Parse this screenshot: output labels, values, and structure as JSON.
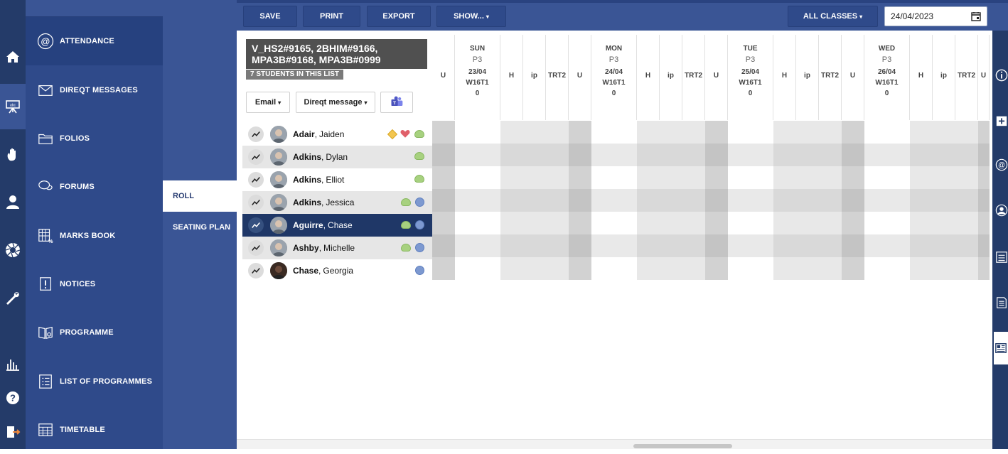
{
  "nav": {
    "items": [
      {
        "label": "ATTENDANCE",
        "icon": "at-sign-icon",
        "active": true
      },
      {
        "label": "DIREQT MESSAGES",
        "icon": "envelope-icon"
      },
      {
        "label": "FOLIOS",
        "icon": "folder-icon"
      },
      {
        "label": "FORUMS",
        "icon": "chat-bubbles-icon"
      },
      {
        "label": "MARKS BOOK",
        "icon": "gradebook-icon"
      },
      {
        "label": "NOTICES",
        "icon": "notice-exclamation-icon"
      },
      {
        "label": "PROGRAMME",
        "icon": "book-open-icon"
      },
      {
        "label": "LIST OF PROGRAMMES",
        "icon": "list-icon"
      },
      {
        "label": "TIMETABLE",
        "icon": "calendar-grid-icon"
      }
    ]
  },
  "subnav": {
    "roll": "ROLL",
    "seating_plan": "SEATING PLAN"
  },
  "toolbar": {
    "save": "SAVE",
    "print": "PRINT",
    "export": "EXPORT",
    "show": "SHOW...",
    "all_classes": "ALL CLASSES",
    "date": "24/04/2023"
  },
  "class_panel": {
    "title_line1": "V_HS2#9165, 2BHIM#9166,",
    "title_line2": "MPA3B#9168, MPA3B#0999",
    "count": "7 STUDENTS IN THIS LIST",
    "email_btn": "Email",
    "direqt_btn": "Direqt message",
    "teams_icon": "microsoft-teams-icon"
  },
  "grid": {
    "first_col": "U",
    "days": [
      {
        "day": "SUN",
        "period": "P3",
        "date": "23/04",
        "week": "W16T1",
        "count": "0",
        "cols": [
          "H",
          "ip",
          "TRT2",
          "U"
        ]
      },
      {
        "day": "MON",
        "period": "P3",
        "date": "24/04",
        "week": "W16T1",
        "count": "0",
        "cols": [
          "H",
          "ip",
          "TRT2",
          "U"
        ]
      },
      {
        "day": "TUE",
        "period": "P3",
        "date": "25/04",
        "week": "W16T1",
        "count": "0",
        "cols": [
          "H",
          "ip",
          "TRT2",
          "U"
        ]
      },
      {
        "day": "WED",
        "period": "P3",
        "date": "26/04",
        "week": "W16T1",
        "count": "0",
        "cols": [
          "H",
          "ip",
          "TRT2",
          "U"
        ]
      }
    ]
  },
  "students": [
    {
      "last": "Adair",
      "first": "Jaiden",
      "badges": [
        "diamond",
        "heart",
        "green"
      ]
    },
    {
      "last": "Adkins",
      "first": "Dylan",
      "badges": [
        "green"
      ]
    },
    {
      "last": "Adkins",
      "first": "Elliot",
      "badges": [
        "green"
      ]
    },
    {
      "last": "Adkins",
      "first": "Jessica",
      "badges": [
        "green",
        "blue"
      ]
    },
    {
      "last": "Aguirre",
      "first": "Chase",
      "badges": [
        "green",
        "blue"
      ],
      "selected": true
    },
    {
      "last": "Ashby",
      "first": "Michelle",
      "badges": [
        "green",
        "blue"
      ]
    },
    {
      "last": "Chase",
      "first": "Georgia",
      "badges": [
        "blue"
      ]
    }
  ],
  "colors": {
    "rail": "#243b69",
    "nav": "#2f4a8a",
    "toolbar": "#3a5595",
    "selected_row": "#1f3767"
  }
}
